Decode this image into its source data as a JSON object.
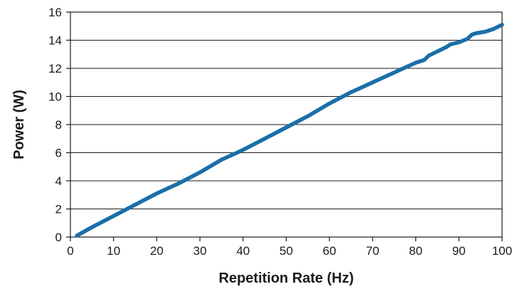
{
  "chart_data": {
    "type": "line",
    "xlabel": "Repetition Rate (Hz)",
    "ylabel": "Power (W)",
    "xlim": [
      0,
      100
    ],
    "ylim": [
      0,
      16
    ],
    "x_ticks": [
      0,
      10,
      20,
      30,
      40,
      50,
      60,
      70,
      80,
      90,
      100
    ],
    "y_ticks": [
      0,
      2,
      4,
      6,
      8,
      10,
      12,
      14,
      16
    ],
    "grid": "horizontal",
    "series": [
      {
        "color": "#1a6fa8",
        "x": [
          1.5,
          5,
          10,
          15,
          20,
          25,
          30,
          35,
          40,
          45,
          50,
          55,
          60,
          65,
          70,
          75,
          80,
          82,
          83,
          85,
          87,
          88,
          90,
          92,
          93,
          94,
          96,
          98,
          100
        ],
        "y": [
          0.1,
          0.7,
          1.5,
          2.3,
          3.1,
          3.8,
          4.6,
          5.5,
          6.2,
          7.0,
          7.8,
          8.6,
          9.5,
          10.3,
          11.0,
          11.7,
          12.4,
          12.6,
          12.9,
          13.2,
          13.5,
          13.7,
          13.85,
          14.1,
          14.4,
          14.5,
          14.6,
          14.8,
          15.1
        ]
      }
    ]
  }
}
